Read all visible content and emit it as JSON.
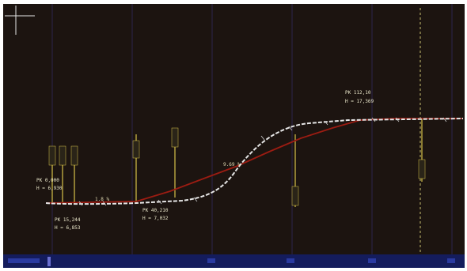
{
  "viewport": {
    "background_color": "#1c1410",
    "frame_color": "#ffffff",
    "grid_color": "#4a3fae",
    "design_color": "#e6e6e6",
    "existing_color": "#9b1c12",
    "station_color": "#d8c24a",
    "marker_color": "#cfcfcf",
    "status_bar_color": "#141c5c"
  },
  "profile": {
    "labels": [
      {
        "id": "pk-start",
        "lines": [
          "PK 0,000",
          "H = 6,930"
        ]
      },
      {
        "id": "pk-low",
        "lines": [
          "PK 15,244",
          "H = 6,853"
        ]
      },
      {
        "id": "pk-mid",
        "lines": [
          "PK 40,210",
          "H = 7,032"
        ]
      },
      {
        "id": "pk-end",
        "lines": [
          "PK 112,10",
          "H = 17,369"
        ]
      }
    ],
    "slopes": [
      {
        "id": "slope-left",
        "text": "1.8 %"
      },
      {
        "id": "slope-mid",
        "text": "9.69 %"
      }
    ]
  }
}
